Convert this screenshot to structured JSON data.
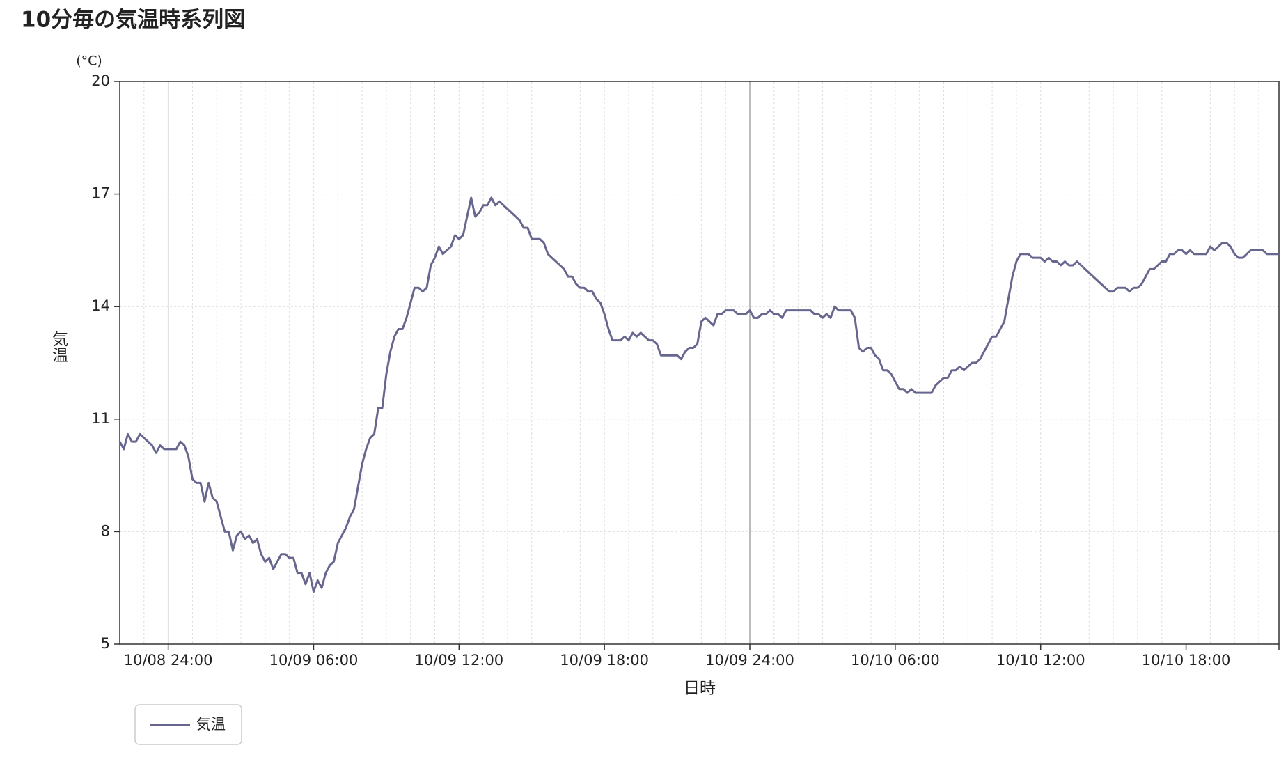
{
  "chart_data": {
    "type": "line",
    "title": "10分毎の気温時系列図",
    "y_unit": "(°C)",
    "ylabel": "気温",
    "xlabel": "日時",
    "ylim": [
      5,
      20
    ],
    "yticks": [
      5,
      8,
      11,
      14,
      17,
      20
    ],
    "grid": true,
    "categories": [
      null,
      null,
      null,
      null,
      null,
      null,
      null,
      null,
      null,
      null,
      null,
      null,
      "10/08 24:00",
      null,
      null,
      null,
      null,
      null,
      null,
      null,
      null,
      null,
      null,
      null,
      null,
      null,
      null,
      null,
      null,
      null,
      null,
      null,
      null,
      null,
      null,
      null,
      null,
      null,
      null,
      null,
      null,
      null,
      null,
      null,
      null,
      null,
      null,
      null,
      "10/09 06:00",
      null,
      null,
      null,
      null,
      null,
      null,
      null,
      null,
      null,
      null,
      null,
      null,
      null,
      null,
      null,
      null,
      null,
      null,
      null,
      null,
      null,
      null,
      null,
      null,
      null,
      null,
      null,
      null,
      null,
      null,
      null,
      null,
      null,
      null,
      null,
      "10/09 12:00",
      null,
      null,
      null,
      null,
      null,
      null,
      null,
      null,
      null,
      null,
      null,
      null,
      null,
      null,
      null,
      null,
      null,
      null,
      null,
      null,
      null,
      null,
      null,
      null,
      null,
      null,
      null,
      null,
      null,
      null,
      null,
      null,
      null,
      null,
      null,
      "10/09 18:00",
      null,
      null,
      null,
      null,
      null,
      null,
      null,
      null,
      null,
      null,
      null,
      null,
      null,
      null,
      null,
      null,
      null,
      null,
      null,
      null,
      null,
      null,
      null,
      null,
      null,
      null,
      null,
      null,
      null,
      null,
      null,
      null,
      null,
      null,
      null,
      "10/09 24:00",
      null,
      null,
      null,
      null,
      null,
      null,
      null,
      null,
      null,
      null,
      null,
      null,
      null,
      null,
      null,
      null,
      null,
      null,
      null,
      null,
      null,
      null,
      null,
      null,
      null,
      null,
      null,
      null,
      null,
      null,
      null,
      null,
      null,
      null,
      null,
      "10/10 06:00",
      null,
      null,
      null,
      null,
      null,
      null,
      null,
      null,
      null,
      null,
      null,
      null,
      null,
      null,
      null,
      null,
      null,
      null,
      null,
      null,
      null,
      null,
      null,
      null,
      null,
      null,
      null,
      null,
      null,
      null,
      null,
      null,
      null,
      null,
      null,
      "10/10 12:00",
      null,
      null,
      null,
      null,
      null,
      null,
      null,
      null,
      null,
      null,
      null,
      null,
      null,
      null,
      null,
      null,
      null,
      null,
      null,
      null,
      null,
      null,
      null,
      null,
      null,
      null,
      null,
      null,
      null,
      null,
      null,
      null,
      null,
      null,
      null,
      "10/10 18:00",
      null,
      null,
      null,
      null,
      null,
      null,
      null,
      null,
      null,
      null,
      null,
      null,
      null,
      null,
      null,
      null,
      null,
      null,
      null,
      null,
      null,
      null,
      null
    ],
    "series": [
      {
        "name": "気温",
        "color": "#67668f",
        "values": [
          10.4,
          10.2,
          10.6,
          10.4,
          10.4,
          10.6,
          10.5,
          10.4,
          10.3,
          10.1,
          10.3,
          10.2,
          10.2,
          10.2,
          10.2,
          10.4,
          10.3,
          10.0,
          9.4,
          9.3,
          9.3,
          8.8,
          9.3,
          8.9,
          8.8,
          8.4,
          8.0,
          8.0,
          7.5,
          7.9,
          8.0,
          7.8,
          7.9,
          7.7,
          7.8,
          7.4,
          7.2,
          7.3,
          7.0,
          7.2,
          7.4,
          7.4,
          7.3,
          7.3,
          6.9,
          6.9,
          6.6,
          6.9,
          6.4,
          6.7,
          6.5,
          6.9,
          7.1,
          7.2,
          7.7,
          7.9,
          8.1,
          8.4,
          8.6,
          9.2,
          9.8,
          10.2,
          10.5,
          10.6,
          11.3,
          11.3,
          12.2,
          12.8,
          13.2,
          13.4,
          13.4,
          13.7,
          14.1,
          14.5,
          14.5,
          14.4,
          14.5,
          15.1,
          15.3,
          15.6,
          15.4,
          15.5,
          15.6,
          15.9,
          15.8,
          15.9,
          16.4,
          16.9,
          16.4,
          16.5,
          16.7,
          16.7,
          16.9,
          16.7,
          16.8,
          16.7,
          16.6,
          16.5,
          16.4,
          16.3,
          16.1,
          16.1,
          15.8,
          15.8,
          15.8,
          15.7,
          15.4,
          15.3,
          15.2,
          15.1,
          15.0,
          14.8,
          14.8,
          14.6,
          14.5,
          14.5,
          14.4,
          14.4,
          14.2,
          14.1,
          13.8,
          13.4,
          13.1,
          13.1,
          13.1,
          13.2,
          13.1,
          13.3,
          13.2,
          13.3,
          13.2,
          13.1,
          13.1,
          13.0,
          12.7,
          12.7,
          12.7,
          12.7,
          12.7,
          12.6,
          12.8,
          12.9,
          12.9,
          13.0,
          13.6,
          13.7,
          13.6,
          13.5,
          13.8,
          13.8,
          13.9,
          13.9,
          13.9,
          13.8,
          13.8,
          13.8,
          13.9,
          13.7,
          13.7,
          13.8,
          13.8,
          13.9,
          13.8,
          13.8,
          13.7,
          13.9,
          13.9,
          13.9,
          13.9,
          13.9,
          13.9,
          13.9,
          13.8,
          13.8,
          13.7,
          13.8,
          13.7,
          14.0,
          13.9,
          13.9,
          13.9,
          13.9,
          13.7,
          12.9,
          12.8,
          12.9,
          12.9,
          12.7,
          12.6,
          12.3,
          12.3,
          12.2,
          12.0,
          11.8,
          11.8,
          11.7,
          11.8,
          11.7,
          11.7,
          11.7,
          11.7,
          11.7,
          11.9,
          12.0,
          12.1,
          12.1,
          12.3,
          12.3,
          12.4,
          12.3,
          12.4,
          12.5,
          12.5,
          12.6,
          12.8,
          13.0,
          13.2,
          13.2,
          13.4,
          13.6,
          14.2,
          14.8,
          15.2,
          15.4,
          15.4,
          15.4,
          15.3,
          15.3,
          15.3,
          15.2,
          15.3,
          15.2,
          15.2,
          15.1,
          15.2,
          15.1,
          15.1,
          15.2,
          15.1,
          15.0,
          14.9,
          14.8,
          14.7,
          14.6,
          14.5,
          14.4,
          14.4,
          14.5,
          14.5,
          14.5,
          14.4,
          14.5,
          14.5,
          14.6,
          14.8,
          15.0,
          15.0,
          15.1,
          15.2,
          15.2,
          15.4,
          15.4,
          15.5,
          15.5,
          15.4,
          15.5,
          15.4,
          15.4,
          15.4,
          15.4,
          15.6,
          15.5,
          15.6,
          15.7,
          15.7,
          15.6,
          15.4,
          15.3,
          15.3,
          15.4,
          15.5,
          15.5,
          15.5,
          15.5,
          15.4,
          15.4,
          15.4,
          15.4
        ]
      }
    ]
  }
}
